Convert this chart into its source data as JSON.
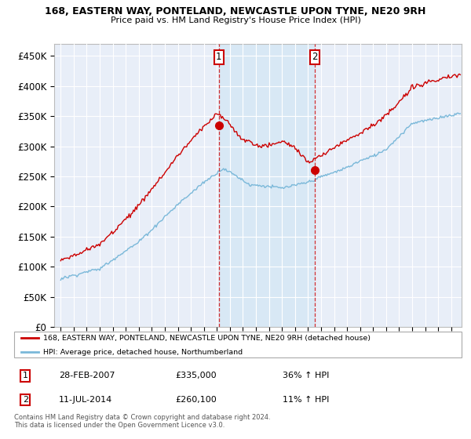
{
  "title1": "168, EASTERN WAY, PONTELAND, NEWCASTLE UPON TYNE, NE20 9RH",
  "title2": "Price paid vs. HM Land Registry's House Price Index (HPI)",
  "yticks": [
    0,
    50000,
    100000,
    150000,
    200000,
    250000,
    300000,
    350000,
    400000,
    450000
  ],
  "ytick_labels": [
    "£0",
    "£50K",
    "£100K",
    "£150K",
    "£200K",
    "£250K",
    "£300K",
    "£350K",
    "£400K",
    "£450K"
  ],
  "ylim": [
    0,
    470000
  ],
  "sale1_date_num": 2007.16,
  "sale1_price": 335000,
  "sale2_date_num": 2014.53,
  "sale2_price": 260100,
  "sale1_date_str": "28-FEB-2007",
  "sale2_date_str": "11-JUL-2014",
  "sale1_pct": "36% ↑ HPI",
  "sale2_pct": "11% ↑ HPI",
  "sale1_amount": "£335,000",
  "sale2_amount": "£260,100",
  "legend_line1": "168, EASTERN WAY, PONTELAND, NEWCASTLE UPON TYNE, NE20 9RH (detached house)",
  "legend_line2": "HPI: Average price, detached house, Northumberland",
  "footnote1": "Contains HM Land Registry data © Crown copyright and database right 2024.",
  "footnote2": "This data is licensed under the Open Government Licence v3.0.",
  "hpi_color": "#7ab8d9",
  "price_color": "#cc0000",
  "vline_color": "#cc0000",
  "shade_color": "#d6e8f5",
  "background_color": "#e8eef8",
  "grid_color": "#ffffff",
  "xlim_left": 1994.5,
  "xlim_right": 2025.8
}
